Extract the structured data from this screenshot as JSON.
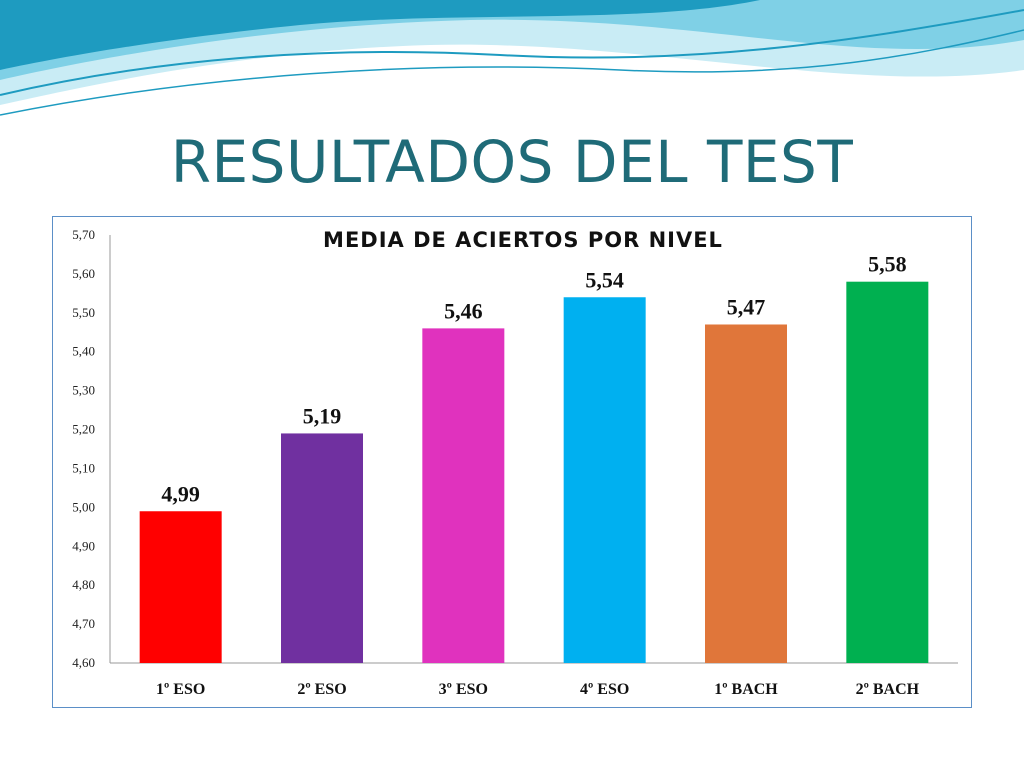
{
  "slide": {
    "title": "RESULTADOS DEL TEST"
  },
  "colors": {
    "title": "#1f6b78",
    "frame_border": "#5b8fc7",
    "wave_light": "#c9ecf5",
    "wave_mid": "#7fd0e6",
    "wave_dark": "#1e9bc0"
  },
  "chart_data": {
    "type": "bar",
    "title": "MEDIA DE ACIERTOS POR NIVEL",
    "categories": [
      "1º ESO",
      "2º ESO",
      "3º ESO",
      "4º ESO",
      "1º BACH",
      "2º BACH"
    ],
    "values": [
      4.99,
      5.19,
      5.46,
      5.54,
      5.47,
      5.58
    ],
    "data_labels": [
      "4,99",
      "5,19",
      "5,46",
      "5,54",
      "5,47",
      "5,58"
    ],
    "bar_colors": [
      "#ff0000",
      "#7030a0",
      "#e032be",
      "#00b0f0",
      "#e0763a",
      "#00b050"
    ],
    "ylim": [
      4.6,
      5.7
    ],
    "yticks": [
      "4,60",
      "4,70",
      "4,80",
      "4,90",
      "5,00",
      "5,10",
      "5,20",
      "5,30",
      "5,40",
      "5,50",
      "5,60",
      "5,70"
    ],
    "xlabel": "",
    "ylabel": "",
    "grid": false,
    "legend": "none"
  }
}
